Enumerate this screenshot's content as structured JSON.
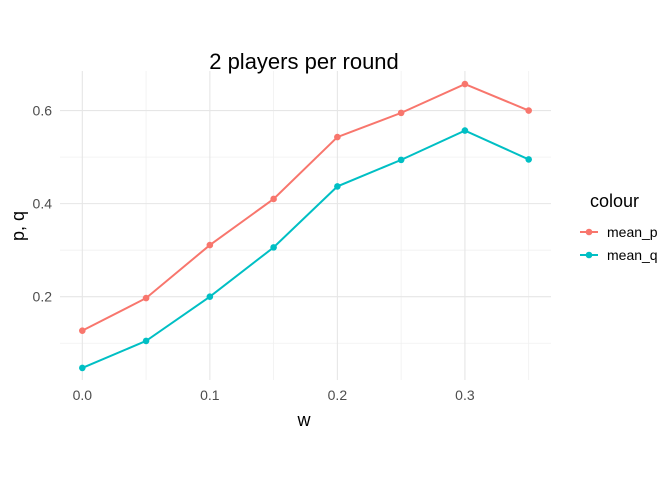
{
  "chart_data": {
    "type": "line",
    "title": "2 players per round",
    "xlabel": "w",
    "ylabel": "p, q",
    "x": [
      0.0,
      0.05,
      0.1,
      0.15,
      0.2,
      0.25,
      0.3,
      0.35
    ],
    "x_ticks": [
      "0.0",
      "0.1",
      "0.2",
      "0.3"
    ],
    "y_ticks": [
      "0.2",
      "0.4",
      "0.6"
    ],
    "xlim": [
      -0.0175,
      0.3675
    ],
    "ylim": [
      0.021,
      0.685
    ],
    "grid": true,
    "legend": {
      "title": "colour",
      "placement": "right"
    },
    "series": [
      {
        "name": "mean_p",
        "color": "#F8766D",
        "values": [
          0.127,
          0.197,
          0.311,
          0.41,
          0.543,
          0.595,
          0.657,
          0.6
        ]
      },
      {
        "name": "mean_q",
        "color": "#00BFC4",
        "values": [
          0.047,
          0.105,
          0.2,
          0.306,
          0.437,
          0.494,
          0.557,
          0.495
        ]
      }
    ]
  }
}
